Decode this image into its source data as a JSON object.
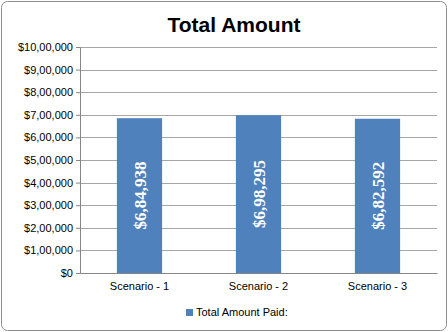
{
  "chart_data": {
    "type": "bar",
    "title": "Total Amount",
    "categories": [
      "Scenario - 1",
      "Scenario - 2",
      "Scenario - 3"
    ],
    "series": [
      {
        "name": "Total Amount Paid:",
        "color": "#4f81bd",
        "values": [
          684938,
          698295,
          682592
        ],
        "value_labels": [
          "$6,84,938",
          "$6,98,295",
          "$6,82,592"
        ]
      }
    ],
    "ylim": [
      0,
      1000000
    ],
    "yticks": [
      {
        "value": 0,
        "label": "$0"
      },
      {
        "value": 100000,
        "label": "$1,00,000"
      },
      {
        "value": 200000,
        "label": "$2,00,000"
      },
      {
        "value": 300000,
        "label": "$3,00,000"
      },
      {
        "value": 400000,
        "label": "$4,00,000"
      },
      {
        "value": 500000,
        "label": "$5,00,000"
      },
      {
        "value": 600000,
        "label": "$6,00,000"
      },
      {
        "value": 700000,
        "label": "$7,00,000"
      },
      {
        "value": 800000,
        "label": "$8,00,000"
      },
      {
        "value": 900000,
        "label": "$9,00,000"
      },
      {
        "value": 1000000,
        "label": "$10,00,000"
      }
    ],
    "grid": true,
    "legend": "bottom",
    "data_labels": true
  }
}
